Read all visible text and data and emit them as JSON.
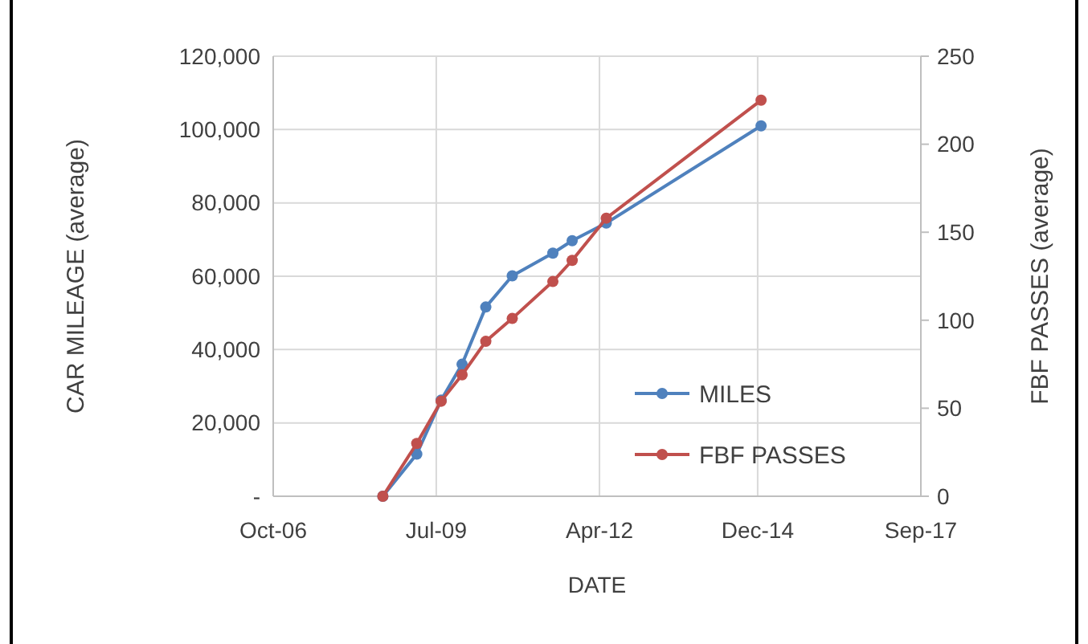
{
  "chart_data": {
    "type": "line",
    "xlabel": "DATE",
    "ylabel": "CAR MILEAGE (average)",
    "y2label": "FBF PASSES (average)",
    "x": [
      "2008-08-06",
      "2009-03-03",
      "2009-07-31",
      "2009-12-07",
      "2010-05-02",
      "2010-10-12",
      "2011-06-19",
      "2011-10-16",
      "2012-05-13",
      "2014-12-22"
    ],
    "series": [
      {
        "name": "MILES",
        "color": "#4f81bd",
        "values": [
          0,
          11500,
          26200,
          36000,
          51600,
          60100,
          66300,
          69700,
          74500,
          101000
        ]
      },
      {
        "name": "FBF PASSES",
        "color": "#c0504d",
        "axis": "y2",
        "values": [
          0,
          30,
          54,
          69,
          88,
          101,
          122,
          134,
          158,
          225
        ]
      }
    ],
    "xlim": [
      "2006-10-01",
      "2017-09-01"
    ],
    "xticks": [
      {
        "value": "2006-10-01",
        "label": "Oct-06"
      },
      {
        "value": "2009-07-01",
        "label": "Jul-09"
      },
      {
        "value": "2012-04-01",
        "label": "Apr-12"
      },
      {
        "value": "2014-12-01",
        "label": "Dec-14"
      },
      {
        "value": "2017-09-01",
        "label": "Sep-17"
      }
    ],
    "ylim": [
      0,
      120000
    ],
    "yticks": [
      {
        "value": 0,
        "label": "-"
      },
      {
        "value": 20000,
        "label": "20,000"
      },
      {
        "value": 40000,
        "label": "40,000"
      },
      {
        "value": 60000,
        "label": "60,000"
      },
      {
        "value": 80000,
        "label": "80,000"
      },
      {
        "value": 100000,
        "label": "100,000"
      },
      {
        "value": 120000,
        "label": "120,000"
      }
    ],
    "y2lim": [
      0,
      250
    ],
    "y2ticks": [
      0,
      50,
      100,
      150,
      200,
      250
    ],
    "grid": true,
    "legend": "bottom right",
    "marker": "circle",
    "line_style": "solid"
  }
}
